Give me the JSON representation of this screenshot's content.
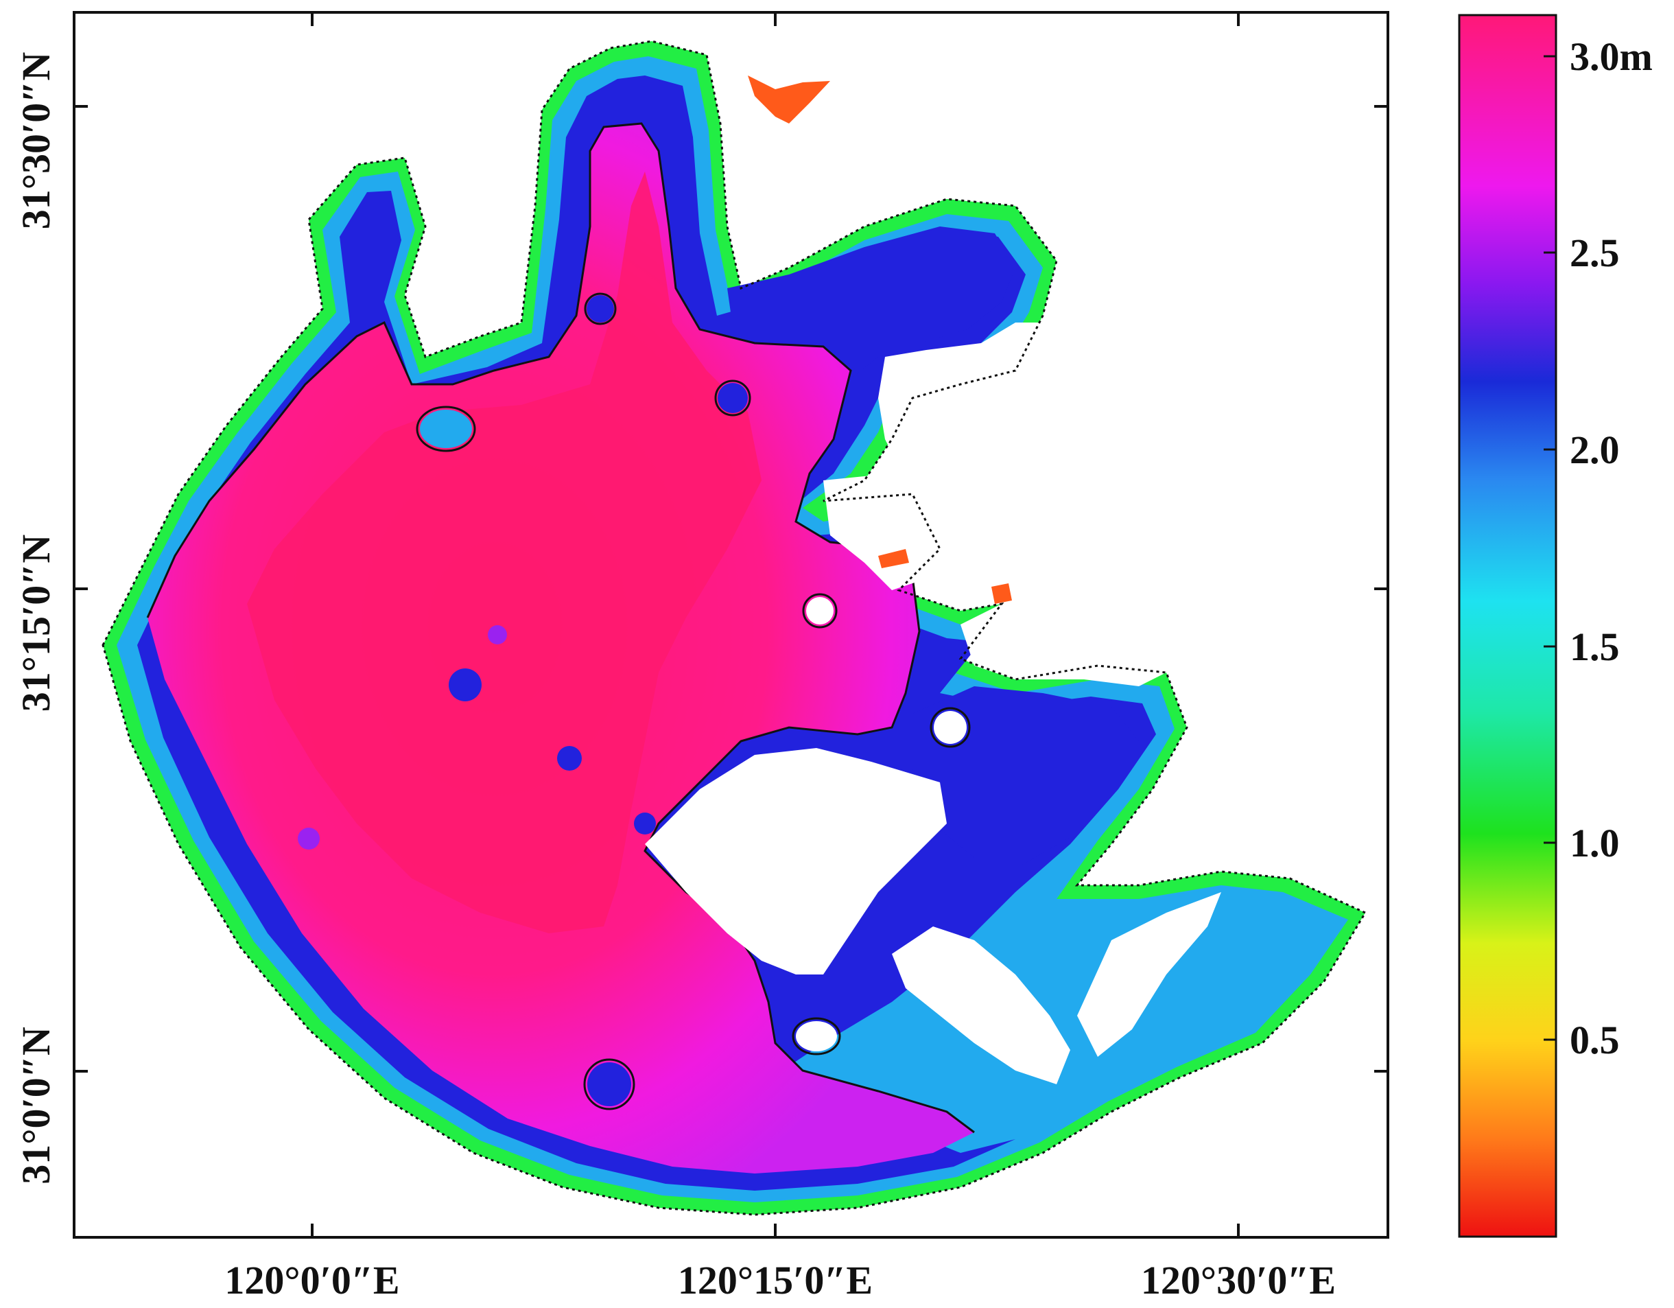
{
  "map": {
    "axes": {
      "x_ticks": [
        "120°0′0″E",
        "120°15′0″E",
        "120°30′0″E"
      ],
      "y_ticks": [
        "31°30′0″N",
        "31°15′0″N",
        "31°0′0″N"
      ]
    },
    "colorbar": {
      "labels": [
        "3.0m",
        "2.5",
        "2.0",
        "1.5",
        "1.0",
        "0.5"
      ],
      "stops": [
        "#ee1111",
        "#ff7a1a",
        "#ffd21a",
        "#d8f218",
        "#1ee21e",
        "#1ee8a8",
        "#1ee2f0",
        "#2a88f0",
        "#1a2ad8",
        "#8a18f0",
        "#ee18ee",
        "#ff1878"
      ]
    },
    "colors": {
      "deep": "#ff1a7a",
      "deep_edge": "#ee20e0",
      "mid": "#2222dd",
      "shallow": "#22aaee",
      "edge": "#22ee44",
      "land": "#ffffff",
      "outline": "#111111"
    }
  }
}
